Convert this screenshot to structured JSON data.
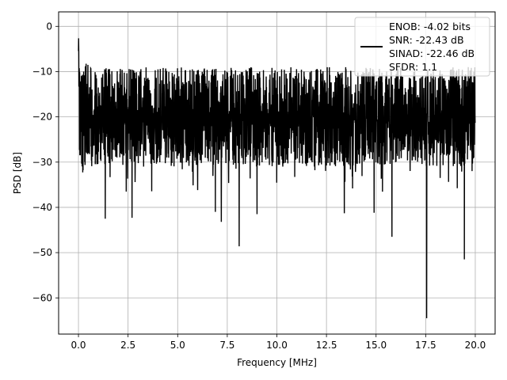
{
  "chart_data": {
    "type": "line",
    "title": "",
    "xlabel": "Frequency [MHz]",
    "ylabel": "PSD [dB]",
    "xlim": [
      -1.0,
      21.0
    ],
    "ylim": [
      -68,
      3.2
    ],
    "xticks": [
      0.0,
      2.5,
      5.0,
      7.5,
      10.0,
      12.5,
      15.0,
      17.5,
      20.0
    ],
    "xtick_labels": [
      "0.0",
      "2.5",
      "5.0",
      "7.5",
      "10.0",
      "12.5",
      "15.0",
      "17.5",
      "20.0"
    ],
    "yticks": [
      0,
      -10,
      -20,
      -30,
      -40,
      -50,
      -60
    ],
    "ytick_labels": [
      "0",
      "−10",
      "−20",
      "−30",
      "−40",
      "−50",
      "−60"
    ],
    "grid": true,
    "legend_position": "top-right",
    "series": [
      {
        "name": "",
        "color": "#000000",
        "x_start": 0.0,
        "x_end": 20.0,
        "noise_floor_db": -20,
        "upper_envelope_db": -10,
        "lower_envelope_db": -30,
        "peak_at_dc_db": -0.2,
        "deep_nulls": [
          {
            "x": 1.35,
            "y": -42.5
          },
          {
            "x": 2.7,
            "y": -42.3
          },
          {
            "x": 6.9,
            "y": -41.0
          },
          {
            "x": 7.2,
            "y": -43.2
          },
          {
            "x": 8.1,
            "y": -48.6
          },
          {
            "x": 9.0,
            "y": -41.5
          },
          {
            "x": 13.4,
            "y": -41.3
          },
          {
            "x": 14.9,
            "y": -41.2
          },
          {
            "x": 15.8,
            "y": -46.5
          },
          {
            "x": 17.55,
            "y": -64.5
          },
          {
            "x": 19.45,
            "y": -51.5
          }
        ]
      }
    ],
    "legend": {
      "line_color": "#000000",
      "lines": [
        "ENOB: -4.02 bits",
        "SNR: -22.43 dB",
        "SINAD: -22.46 dB",
        "SFDR: 1.1"
      ]
    }
  }
}
